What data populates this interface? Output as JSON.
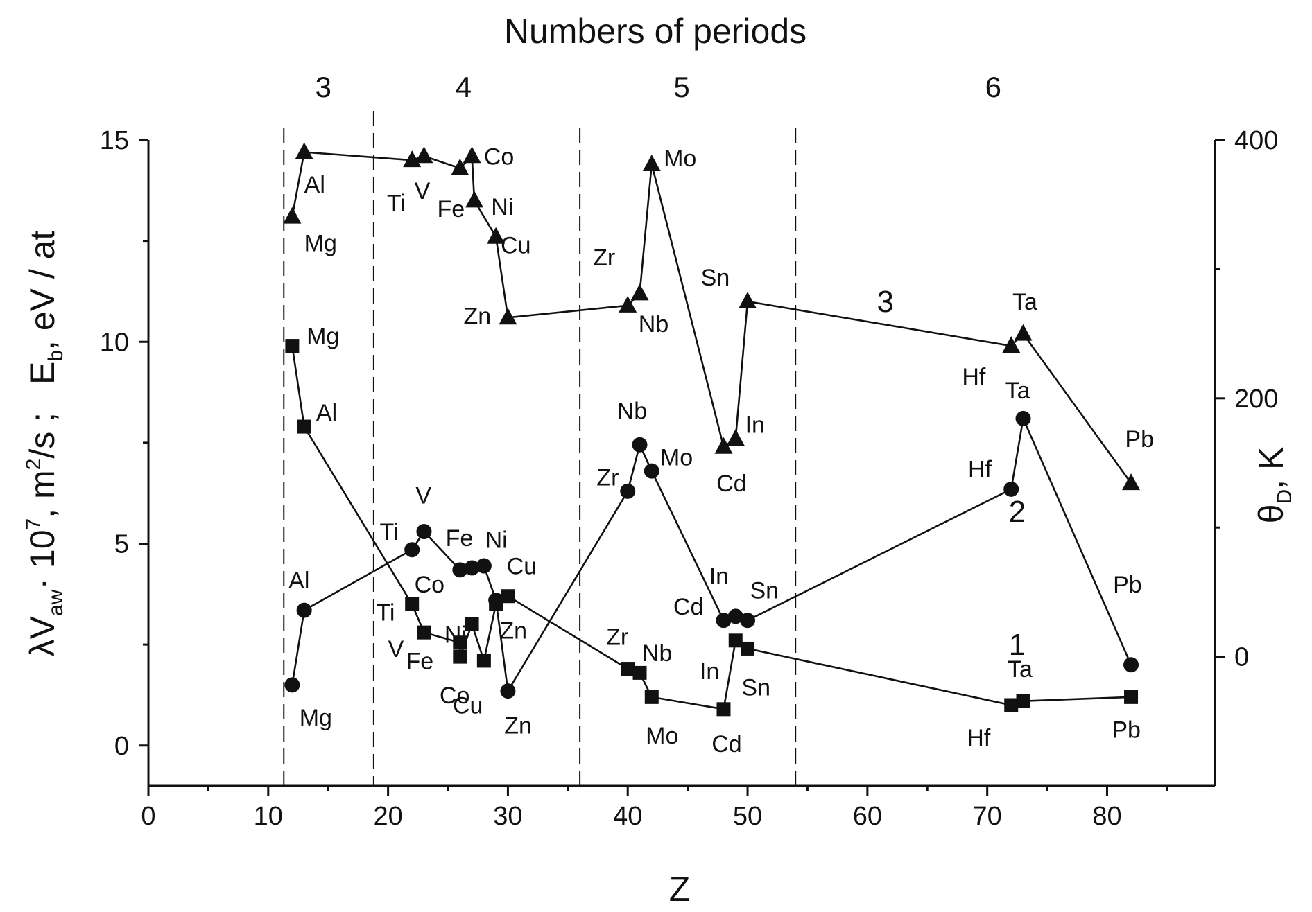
{
  "chart_data": {
    "type": "line",
    "title": "Numbers of periods",
    "xlabel": "Z",
    "ylabel": "λV_aw · 10^7 , m^2/s ;   E_b , eV / at",
    "ylabel_parts": {
      "lambda": "λV",
      "aw": "aw",
      "mid1": "· 10",
      "exp7": "7",
      "mid2": ", m",
      "exp2": "2",
      "mid3": "/s ;",
      "eb": "E",
      "b": "b",
      "tail": ", eV / at"
    },
    "y2label": "θ_D, K",
    "y2label_parts": {
      "theta": "θ",
      "d": "D",
      "unit": ", K"
    },
    "xlim": [
      0,
      89
    ],
    "ylim": [
      -1,
      15
    ],
    "y2lim": [
      -100,
      400
    ],
    "xticks": [
      0,
      10,
      20,
      30,
      40,
      50,
      60,
      70,
      80
    ],
    "xtick_labels": [
      "0",
      "10",
      "20",
      "30",
      "40",
      "50",
      "60",
      "70",
      "80"
    ],
    "yticks": [
      0,
      5,
      10,
      15
    ],
    "ytick_labels": [
      "0",
      "5",
      "10",
      "15"
    ],
    "y2ticks": [
      0,
      200,
      400
    ],
    "y2tick_labels": [
      "0",
      "200",
      "400"
    ],
    "period_boundaries": [
      11.3,
      18.8,
      36.0,
      54.0
    ],
    "periods": [
      {
        "label": "3",
        "x": 14.6
      },
      {
        "label": "4",
        "x": 26.3
      },
      {
        "label": "5",
        "x": 44.5
      },
      {
        "label": "6",
        "x": 70.5
      }
    ],
    "series": [
      {
        "name": "1",
        "marker": "square",
        "axis": "left",
        "label_at": {
          "x": 72.5,
          "y": 2.5
        },
        "points": [
          {
            "el": "Mg",
            "x": 12,
            "y": 9.9,
            "dx": 1.2,
            "dy": 0.25
          },
          {
            "el": "Al",
            "x": 13,
            "y": 7.9,
            "dx": 1.0,
            "dy": 0.35
          },
          {
            "el": "Ti",
            "x": 22,
            "y": 3.5,
            "dx": -3.0,
            "dy": -0.2
          },
          {
            "el": "V",
            "x": 23,
            "y": 2.8,
            "dx": -3.0,
            "dy": -0.4
          },
          {
            "el": "Fe",
            "x": 26,
            "y": 2.55,
            "dx": -4.5,
            "dy": -0.45
          },
          {
            "el": "Fe",
            "x": 26,
            "y": 2.2,
            "dx": 0,
            "dy": 0,
            "hide_label": true
          },
          {
            "el": "Co",
            "x": 27,
            "y": 3.0,
            "dx": -2.7,
            "dy": -1.75
          },
          {
            "el": "Cu",
            "x": 28,
            "y": 2.1,
            "dx": -2.6,
            "dy": -1.1
          },
          {
            "el": "Ni",
            "x": 29,
            "y": 3.5,
            "dx": -4.3,
            "dy": -0.75
          },
          {
            "el": "Zn",
            "x": 30,
            "y": 3.7,
            "dx": -0.7,
            "dy": -0.85
          },
          {
            "el": "Zr",
            "x": 40,
            "y": 1.9,
            "dx": -1.8,
            "dy": 0.8
          },
          {
            "el": "Nb",
            "x": 41,
            "y": 1.8,
            "dx": 0.2,
            "dy": 0.5
          },
          {
            "el": "Mo",
            "x": 42,
            "y": 1.2,
            "dx": -0.5,
            "dy": -0.95
          },
          {
            "el": "Cd",
            "x": 48,
            "y": 0.9,
            "dx": -1.0,
            "dy": -0.85
          },
          {
            "el": "In",
            "x": 49,
            "y": 2.6,
            "dx": -3.0,
            "dy": -0.75
          },
          {
            "el": "Sn",
            "x": 50,
            "y": 2.4,
            "dx": -0.5,
            "dy": -0.95
          },
          {
            "el": "Hf",
            "x": 72,
            "y": 1.0,
            "dx": -3.7,
            "dy": -0.8
          },
          {
            "el": "Ta",
            "x": 73,
            "y": 1.1,
            "dx": -1.3,
            "dy": 0.8
          },
          {
            "el": "Pb",
            "x": 82,
            "y": 1.2,
            "dx": -1.6,
            "dy": -0.8
          }
        ]
      },
      {
        "name": "2",
        "marker": "circle",
        "axis": "left",
        "label_at": {
          "x": 72.5,
          "y": 5.8
        },
        "points": [
          {
            "el": "Mg",
            "x": 12,
            "y": 1.5,
            "dx": 0.6,
            "dy": -0.8
          },
          {
            "el": "Al",
            "x": 13,
            "y": 3.35,
            "dx": -1.3,
            "dy": 0.75
          },
          {
            "el": "Ti",
            "x": 22,
            "y": 4.85,
            "dx": -2.7,
            "dy": 0.45
          },
          {
            "el": "V",
            "x": 23,
            "y": 5.3,
            "dx": -0.7,
            "dy": 0.9
          },
          {
            "el": "Co",
            "x": 26,
            "y": 4.35,
            "dx": -3.8,
            "dy": -0.35
          },
          {
            "el": "Fe",
            "x": 27,
            "y": 4.4,
            "dx": -2.2,
            "dy": 0.75
          },
          {
            "el": "Ni",
            "x": 28,
            "y": 4.45,
            "dx": 0.1,
            "dy": 0.65
          },
          {
            "el": "Cu",
            "x": 29,
            "y": 3.6,
            "dx": 0.9,
            "dy": 0.85
          },
          {
            "el": "Zn",
            "x": 30,
            "y": 1.35,
            "dx": -0.3,
            "dy": -0.85
          },
          {
            "el": "Zr",
            "x": 40,
            "y": 6.3,
            "dx": -2.6,
            "dy": 0.35
          },
          {
            "el": "Nb",
            "x": 41,
            "y": 7.45,
            "dx": -1.9,
            "dy": 0.85
          },
          {
            "el": "Mo",
            "x": 42,
            "y": 6.8,
            "dx": 0.7,
            "dy": 0.35
          },
          {
            "el": "Cd",
            "x": 48,
            "y": 3.1,
            "dx": -4.2,
            "dy": 0.35
          },
          {
            "el": "In",
            "x": 49,
            "y": 3.2,
            "dx": -2.2,
            "dy": 1.0
          },
          {
            "el": "Sn",
            "x": 50,
            "y": 3.1,
            "dx": 0.2,
            "dy": 0.75
          },
          {
            "el": "Hf",
            "x": 72,
            "y": 6.35,
            "dx": -3.6,
            "dy": 0.5
          },
          {
            "el": "Ta",
            "x": 73,
            "y": 8.1,
            "dx": -1.5,
            "dy": 0.7
          },
          {
            "el": "Pb",
            "x": 82,
            "y": 2.0,
            "dx": -1.5,
            "dy": 2.0
          }
        ]
      },
      {
        "name": "3",
        "marker": "triangle",
        "axis": "left",
        "label_at": {
          "x": 61.5,
          "y": 11.0
        },
        "points": [
          {
            "el": "Mg",
            "x": 12,
            "y": 13.1,
            "dx": 1.0,
            "dy": -0.65
          },
          {
            "el": "Al",
            "x": 13,
            "y": 14.7,
            "dx": 0.0,
            "dy": -0.8
          },
          {
            "el": "Ti",
            "x": 22,
            "y": 14.5,
            "dx": -2.1,
            "dy": -1.05
          },
          {
            "el": "V",
            "x": 23,
            "y": 14.6,
            "dx": -0.8,
            "dy": -0.85
          },
          {
            "el": "Fe",
            "x": 26,
            "y": 14.3,
            "dx": -1.9,
            "dy": -1.0
          },
          {
            "el": "Co",
            "x": 27,
            "y": 14.6,
            "dx": 1.0,
            "dy": 0.0
          },
          {
            "el": "Ni",
            "x": 27.2,
            "y": 13.5,
            "dx": 1.4,
            "dy": -0.15
          },
          {
            "el": "Cu",
            "x": 29,
            "y": 12.6,
            "dx": 0.4,
            "dy": -0.2
          },
          {
            "el": "Zn",
            "x": 30,
            "y": 10.6,
            "dx": -3.7,
            "dy": 0.05
          },
          {
            "el": "Zr",
            "x": 40,
            "y": 10.9,
            "dx": -2.9,
            "dy": 1.2
          },
          {
            "el": "Nb",
            "x": 41,
            "y": 11.2,
            "dx": -0.1,
            "dy": -0.75
          },
          {
            "el": "Mo",
            "x": 42,
            "y": 14.4,
            "dx": 1.0,
            "dy": 0.15
          },
          {
            "el": "Cd",
            "x": 48,
            "y": 7.4,
            "dx": -0.6,
            "dy": -0.9
          },
          {
            "el": "In",
            "x": 49,
            "y": 7.6,
            "dx": 0.8,
            "dy": 0.35
          },
          {
            "el": "Sn",
            "x": 50,
            "y": 11.0,
            "dx": -3.9,
            "dy": 0.6
          },
          {
            "el": "Hf",
            "x": 72,
            "y": 9.9,
            "dx": -4.1,
            "dy": -0.75
          },
          {
            "el": "Ta",
            "x": 73,
            "y": 10.2,
            "dx": -0.9,
            "dy": 0.8
          },
          {
            "el": "Pb",
            "x": 82,
            "y": 6.5,
            "dx": -0.5,
            "dy": 1.1
          }
        ]
      }
    ]
  }
}
